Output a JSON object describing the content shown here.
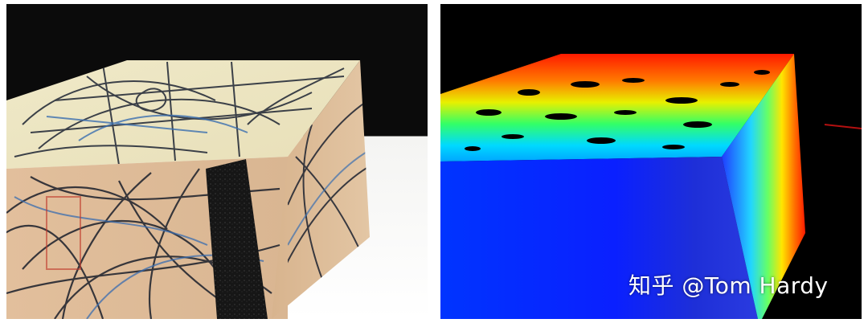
{
  "watermark": {
    "text": "知乎 @Tom Hardy"
  },
  "left_photo": {
    "icon": "scribbled-box-photo"
  },
  "right_depth": {
    "icon": "depth-map-visualization"
  }
}
